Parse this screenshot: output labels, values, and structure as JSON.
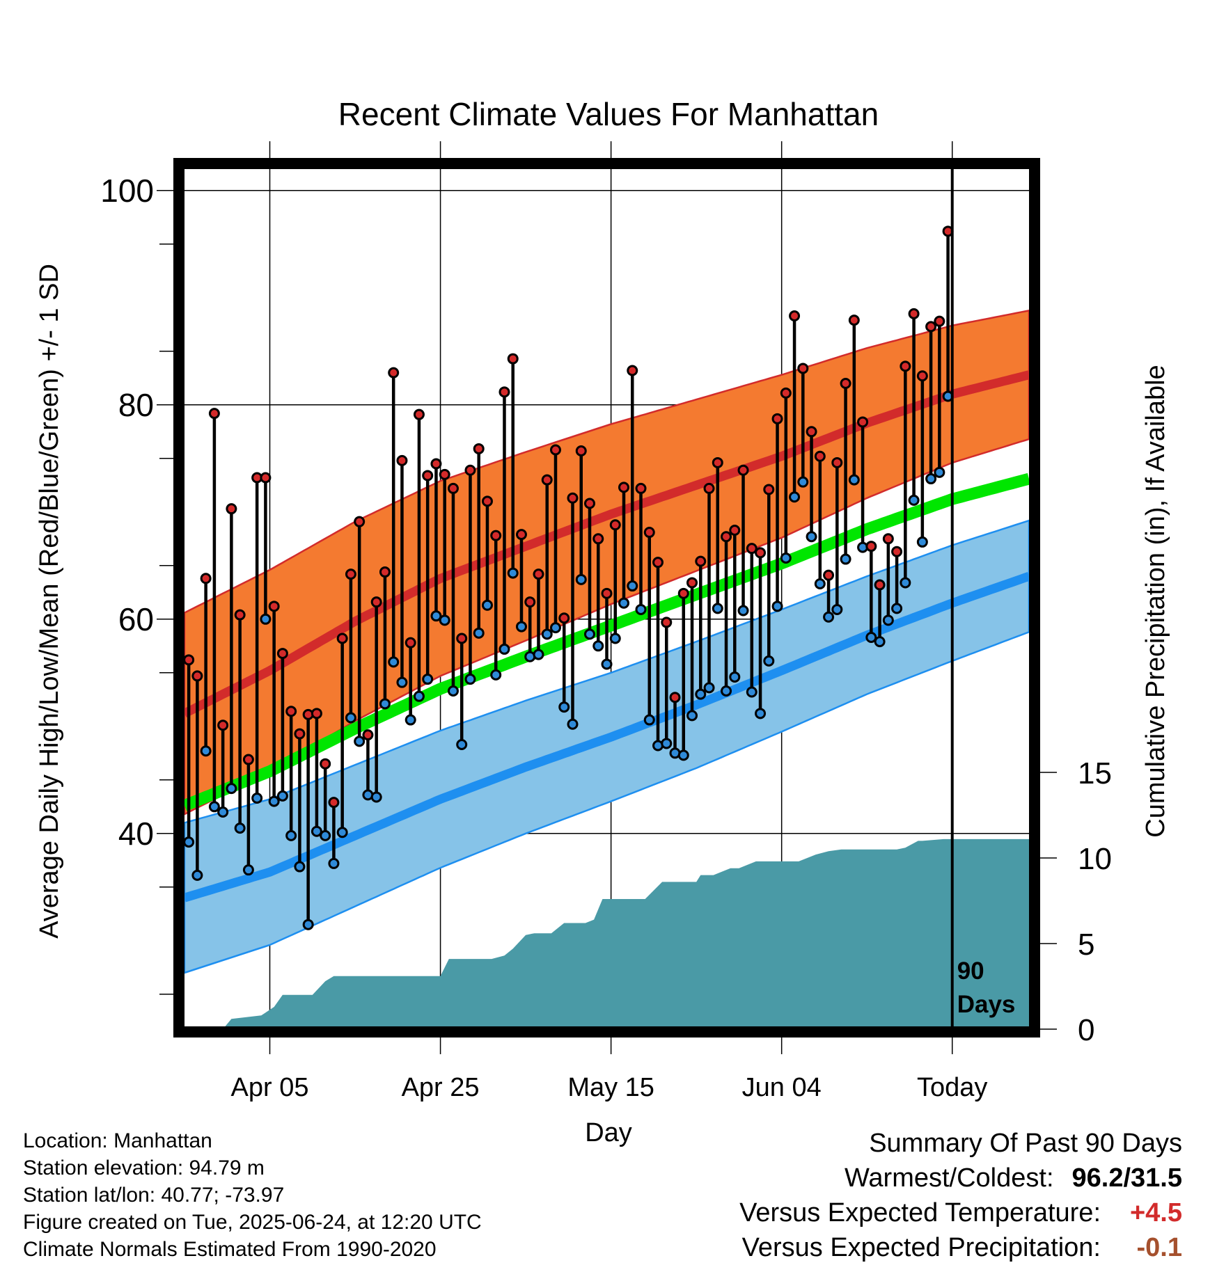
{
  "chart_data": {
    "type": "line",
    "title": "Recent Climate Values For Manhattan",
    "xlabel": "Day",
    "ylabel": "Average Daily High/Low/Mean (Red/Blue/Green) +/- 1 SD",
    "y2label": "Cumulative Precipitation (in), If Available",
    "ylim": [
      22,
      102
    ],
    "y2lim": [
      0,
      50
    ],
    "x_tick_labels": [
      "Apr 05",
      "Apr 25",
      "May 15",
      "Jun 04",
      "Today"
    ],
    "x_tick_days": [
      10,
      30,
      50,
      70,
      90
    ],
    "x_range_days": [
      0,
      99
    ],
    "y_ticks": [
      40,
      60,
      80,
      100
    ],
    "y2_ticks": [
      0,
      5,
      10,
      15
    ],
    "marker_label": "90 Days",
    "grid": true,
    "colors": {
      "high": "#d22b2b",
      "high_band": "#f47a30",
      "low": "#1e8ff0",
      "low_band": "#86c3e8",
      "mean": "#00e600",
      "precip": "#4a9aa6",
      "high_marker": "#d42a2a",
      "low_marker": "#2f8ad8"
    },
    "normals": {
      "days": [
        0,
        10,
        20,
        30,
        40,
        50,
        60,
        70,
        80,
        90,
        99
      ],
      "high_mean": [
        51.2,
        55.2,
        59.8,
        63.8,
        66.8,
        69.8,
        72.5,
        75.2,
        78.3,
        81.0,
        82.8
      ],
      "high_sd": [
        9.4,
        9.4,
        9.3,
        9.1,
        8.8,
        8.4,
        8.0,
        7.6,
        7.0,
        6.4,
        6.0
      ],
      "low_mean": [
        34.0,
        36.4,
        39.8,
        43.2,
        46.2,
        49.0,
        52.0,
        55.2,
        58.5,
        61.5,
        64.0
      ],
      "low_sd": [
        7.0,
        6.8,
        6.6,
        6.4,
        6.2,
        6.0,
        5.9,
        5.7,
        5.5,
        5.4,
        5.2
      ],
      "mean": [
        42.6,
        45.8,
        49.8,
        53.5,
        56.5,
        59.4,
        62.3,
        65.2,
        68.4,
        71.2,
        73.1
      ]
    },
    "series": [
      {
        "name": "High",
        "values": [
          56.2,
          54.7,
          63.8,
          79.2,
          50.1,
          70.3,
          60.4,
          46.9,
          73.2,
          73.2,
          61.2,
          56.8,
          51.4,
          49.3,
          51.1,
          51.2,
          46.5,
          42.9,
          58.2,
          64.2,
          69.1,
          49.2,
          61.6,
          64.4,
          83.0,
          74.8,
          57.8,
          79.1,
          73.4,
          74.5,
          73.5,
          72.2,
          58.2,
          73.9,
          75.9,
          71.0,
          67.8,
          81.2,
          84.3,
          67.9,
          61.6,
          64.2,
          73.0,
          75.8,
          60.1,
          71.3,
          75.7,
          70.8,
          67.5,
          62.4,
          68.8,
          72.3,
          83.2,
          72.2,
          68.1,
          65.3,
          59.7,
          52.7,
          62.4,
          63.4,
          65.4,
          72.2,
          74.6,
          67.7,
          68.3,
          73.9,
          66.6,
          66.2,
          72.1,
          78.7,
          81.1,
          88.3,
          83.4,
          77.5,
          75.2,
          64.1,
          74.6,
          82.0,
          87.9,
          78.4,
          66.8,
          63.2,
          67.5,
          66.3,
          83.6,
          88.5,
          82.7,
          87.3,
          87.8,
          96.2
        ]
      },
      {
        "name": "Low",
        "values": [
          39.2,
          36.1,
          47.7,
          42.5,
          42.0,
          44.2,
          40.5,
          36.6,
          43.3,
          60.0,
          43.0,
          43.5,
          39.8,
          36.9,
          31.5,
          40.2,
          39.8,
          37.2,
          40.1,
          50.8,
          48.6,
          43.6,
          43.4,
          52.1,
          56.0,
          54.1,
          50.6,
          52.8,
          54.4,
          60.3,
          59.9,
          53.3,
          48.3,
          54.4,
          58.7,
          61.3,
          54.8,
          57.2,
          64.3,
          59.3,
          56.5,
          56.7,
          58.6,
          59.2,
          51.8,
          50.2,
          63.7,
          58.6,
          57.5,
          55.8,
          58.2,
          61.5,
          63.1,
          60.9,
          50.6,
          48.2,
          48.4,
          47.5,
          47.3,
          51.0,
          53.0,
          53.6,
          61.0,
          53.3,
          54.6,
          60.8,
          53.2,
          51.2,
          56.1,
          61.2,
          65.7,
          71.4,
          72.8,
          67.7,
          63.3,
          60.2,
          60.9,
          65.6,
          73.0,
          66.7,
          58.3,
          57.9,
          59.9,
          61.0,
          63.4,
          71.1,
          67.2,
          73.1,
          73.7,
          80.8
        ]
      }
    ],
    "precip": {
      "days": [
        0,
        4.5,
        5.5,
        9,
        10.5,
        11.5,
        15,
        16.5,
        17.5,
        21,
        30,
        31,
        36,
        37.5,
        38.5,
        40,
        41,
        43,
        44.5,
        47,
        48,
        49,
        53,
        54,
        56,
        58,
        60,
        60.5,
        62,
        64,
        65,
        67,
        68.5,
        69.5,
        72,
        74,
        75.5,
        77,
        80,
        81,
        83.5,
        84.5,
        86,
        86.5,
        89,
        99
      ],
      "values": [
        0.0,
        0.0,
        0.6,
        0.8,
        1.3,
        2.0,
        2.0,
        2.8,
        3.1,
        3.1,
        3.1,
        4.1,
        4.1,
        4.3,
        4.7,
        5.5,
        5.6,
        5.6,
        6.2,
        6.2,
        6.4,
        7.6,
        7.6,
        7.6,
        8.6,
        8.6,
        8.6,
        9.0,
        9.0,
        9.4,
        9.4,
        9.8,
        9.8,
        9.8,
        9.8,
        10.2,
        10.4,
        10.5,
        10.5,
        10.5,
        10.5,
        10.6,
        11.0,
        11.0,
        11.1,
        11.1
      ]
    }
  },
  "info": {
    "location": "Location: Manhattan",
    "elevation": "Station elevation: 94.79 m",
    "latlon": "Station lat/lon: 40.77; -73.97",
    "created": "Figure created on Tue, 2025-06-24, at 12:20 UTC",
    "normals": "Climate Normals Estimated From 1990-2020"
  },
  "summary": {
    "title": "Summary Of Past 90 Days",
    "warmest_coldest_label": "Warmest/Coldest:",
    "warmest_coldest_value": "96.2/31.5",
    "temp_label": "Versus Expected Temperature:",
    "temp_value": "+4.5",
    "temp_color": "#d22b2b",
    "precip_label": "Versus Expected Precipitation:",
    "precip_value": "-0.1",
    "precip_color": "#a5502d"
  }
}
